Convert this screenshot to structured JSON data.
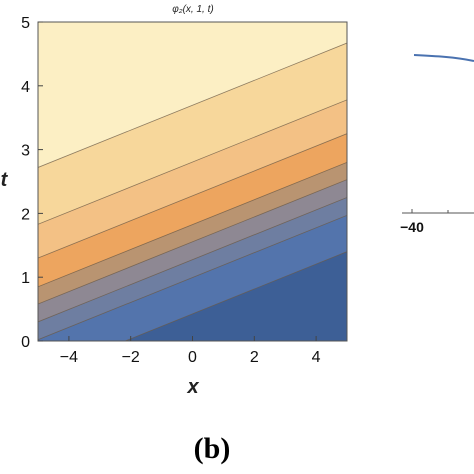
{
  "chart_data": [
    {
      "type": "contour",
      "title": "φ₂(x, 1, t)",
      "xlabel": "x",
      "ylabel": "t",
      "xlim": [
        -5,
        5
      ],
      "ylim": [
        0,
        5
      ],
      "x_ticks": [
        -4,
        -2,
        0,
        2,
        4
      ],
      "y_ticks": [
        0,
        1,
        2,
        3,
        4,
        5
      ],
      "grid": false,
      "contour_slope": 0.195,
      "contour_intercepts_at_x_minus5": [
        2.72,
        1.83,
        1.3,
        0.85,
        0.58,
        0.3,
        0.02,
        -0.55
      ],
      "band_colors": [
        "#fcefc4",
        "#f7d79b",
        "#f3c185",
        "#eda55f",
        "#b99471",
        "#8e8893",
        "#6e7ea1",
        "#5374ac",
        "#3d5f96"
      ]
    },
    {
      "type": "line",
      "x_ticks": [
        -40
      ],
      "series_color": "#4a72b0",
      "partial": true
    }
  ],
  "labels": {
    "panel": "(b)"
  }
}
